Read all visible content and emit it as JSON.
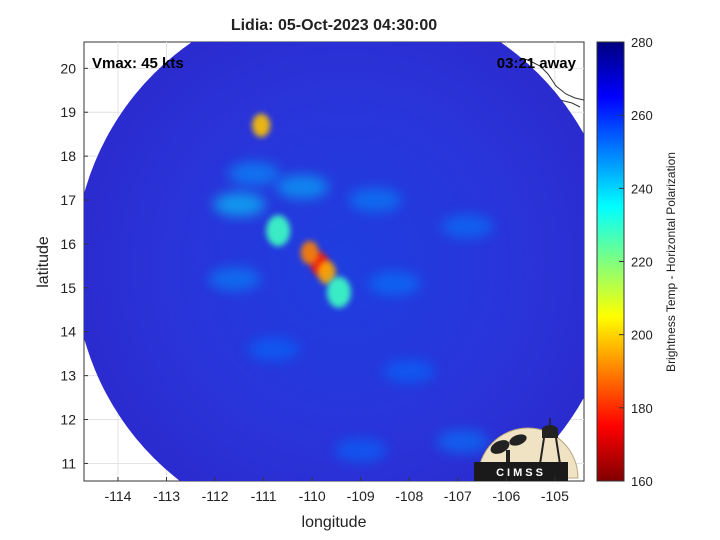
{
  "title": "Lidia: 05-Oct-2023 04:30:00",
  "vmax_label": "Vmax: 45 kts",
  "time_away_label": "03:21 away",
  "logo_text": "CIMSS",
  "colors": {
    "ocean_background": "#2b2bd6",
    "storm_core": "#d42020"
  },
  "chart_data": {
    "type": "heatmap",
    "title": "Lidia: 05-Oct-2023 04:30:00",
    "xlabel": "longitude",
    "ylabel": "latitude",
    "xlim": [
      -114.7,
      -104.4
    ],
    "ylim": [
      10.6,
      20.6
    ],
    "x_ticks": [
      -114,
      -113,
      -112,
      -111,
      -110,
      -109,
      -108,
      -107,
      -106,
      -105
    ],
    "y_ticks": [
      11,
      12,
      13,
      14,
      15,
      16,
      17,
      18,
      19,
      20
    ],
    "x_tick_labels": [
      "-114",
      "-113",
      "-112",
      "-111",
      "-110",
      "-109",
      "-108",
      "-107",
      "-106",
      "-105"
    ],
    "y_tick_labels": [
      "11",
      "12",
      "13",
      "14",
      "15",
      "16",
      "17",
      "18",
      "19",
      "20"
    ],
    "grid": true,
    "colorbar": {
      "label": "Brightness Temp - Horizontal Polarization",
      "range": [
        160,
        280
      ],
      "ticks": [
        160,
        180,
        200,
        220,
        240,
        260,
        280
      ],
      "tick_labels": [
        "160",
        "180",
        "200",
        "220",
        "240",
        "260",
        "280"
      ],
      "colormap": "jet"
    },
    "swath": {
      "center_lon": -109.3,
      "center_lat": 15.5,
      "radius_deg": 5.6,
      "background_temp": 266
    },
    "features": [
      {
        "kind": "core",
        "lon": -109.85,
        "lat": 15.55,
        "temp": 178
      },
      {
        "kind": "core",
        "lon": -110.05,
        "lat": 15.8,
        "temp": 190
      },
      {
        "kind": "core",
        "lon": -109.7,
        "lat": 15.35,
        "temp": 195
      },
      {
        "kind": "core",
        "lon": -109.45,
        "lat": 14.9,
        "temp": 228
      },
      {
        "kind": "core",
        "lon": -110.7,
        "lat": 16.3,
        "temp": 228
      },
      {
        "kind": "core",
        "lon": -111.05,
        "lat": 18.7,
        "temp": 198
      },
      {
        "kind": "band",
        "lon": -111.5,
        "lat": 16.9,
        "temp": 238
      },
      {
        "kind": "band",
        "lon": -110.2,
        "lat": 17.3,
        "temp": 242
      },
      {
        "kind": "band",
        "lon": -111.2,
        "lat": 17.6,
        "temp": 246
      },
      {
        "kind": "band",
        "lon": -108.7,
        "lat": 17.0,
        "temp": 248
      },
      {
        "kind": "band",
        "lon": -108.3,
        "lat": 15.1,
        "temp": 250
      },
      {
        "kind": "band",
        "lon": -111.6,
        "lat": 15.2,
        "temp": 248
      },
      {
        "kind": "band",
        "lon": -110.8,
        "lat": 13.6,
        "temp": 252
      },
      {
        "kind": "band",
        "lon": -108.0,
        "lat": 13.1,
        "temp": 252
      },
      {
        "kind": "band",
        "lon": -106.8,
        "lat": 16.4,
        "temp": 250
      },
      {
        "kind": "band",
        "lon": -109.0,
        "lat": 11.3,
        "temp": 252
      },
      {
        "kind": "band",
        "lon": -106.9,
        "lat": 11.5,
        "temp": 250
      }
    ]
  }
}
